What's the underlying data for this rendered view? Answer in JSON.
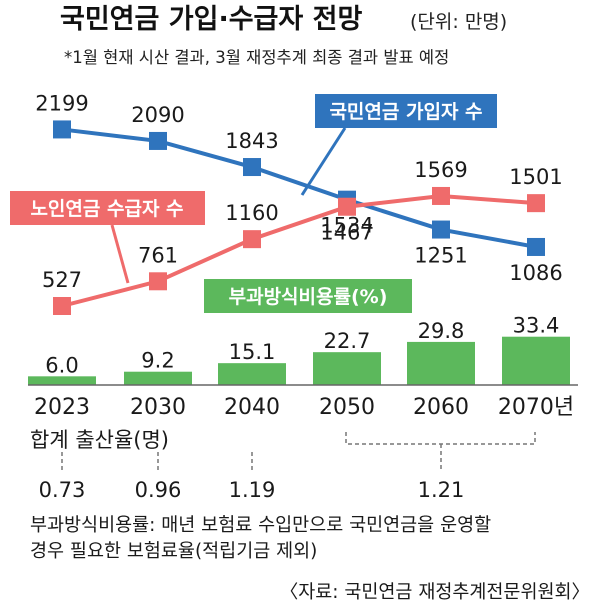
{
  "header": {
    "title": "국민연금 가입·수급자 전망",
    "unit": "(단위: 만명)",
    "subtitle": "*1월 현재 시산 결과, 3월 재정추계 최종 결과 발표 예정"
  },
  "chart_data": {
    "type": "line+bar",
    "categories": [
      "2023",
      "2030",
      "2040",
      "2050",
      "2060",
      "2070"
    ],
    "x_suffix": "년",
    "series": [
      {
        "name": "국민연금 가입자 수",
        "type": "line",
        "color": "#2f74bd",
        "values": [
          2199,
          2090,
          1843,
          1534,
          1251,
          1086
        ]
      },
      {
        "name": "노인연금 수급자 수",
        "type": "line",
        "color": "#ef6b6b",
        "values": [
          527,
          761,
          1160,
          1467,
          1569,
          1501
        ]
      },
      {
        "name": "부과방식비용률(%)",
        "type": "bar",
        "color": "#5cb85c",
        "values": [
          6.0,
          9.2,
          15.1,
          22.7,
          29.8,
          33.4
        ]
      }
    ],
    "fertility": {
      "label": "합계 출산율(명)",
      "points": [
        {
          "category": "2023",
          "value": "0.73"
        },
        {
          "category": "2030",
          "value": "0.96"
        },
        {
          "category": "2040",
          "value": "1.19"
        },
        {
          "category": "2060",
          "value": "1.21"
        }
      ]
    }
  },
  "footer": {
    "note_line1": "부과방식비용률: 매년 보험료 수입만으로 국민연금을 운영할",
    "note_line2": "경우 필요한 보험료율(적립기금 제외)",
    "source": "〈자료: 국민연금 재정추계전문위원회〉"
  }
}
